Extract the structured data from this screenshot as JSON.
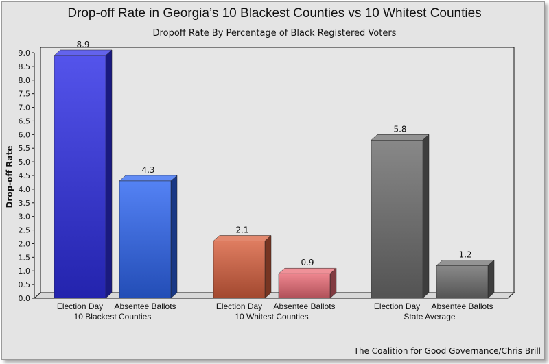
{
  "credit": "The Coalition for Good Governance/Chris Brill",
  "chart_data": {
    "type": "bar",
    "title": "Drop-off Rate in Georgia’s 10 Blackest Counties vs 10 Whitest Counties",
    "subtitle": "Dropoff Rate By Percentage of Black Registered Voters",
    "xlabel": "",
    "ylabel": "Drop-off Rate",
    "ylim": [
      0,
      9.0
    ],
    "yticks": [
      "0.0",
      "0.5",
      "1.0",
      "1.5",
      "2.0",
      "2.5",
      "3.0",
      "3.5",
      "4.0",
      "4.5",
      "5.0",
      "5.5",
      "6.0",
      "6.5",
      "7.0",
      "7.5",
      "8.0",
      "8.5",
      "9.0"
    ],
    "grid": false,
    "legend": "none",
    "groups": [
      {
        "label": "10 Blackest Counties",
        "bars": [
          {
            "label": "Election Day",
            "value": 8.9,
            "color": "#2f2fe6"
          },
          {
            "label": "Absentee Ballots",
            "value": 4.3,
            "color": "#2e66f2"
          }
        ]
      },
      {
        "label": "10 Whitest Counties",
        "bars": [
          {
            "label": "Election Day",
            "value": 2.1,
            "color": "#d8603e"
          },
          {
            "label": "Absentee Ballots",
            "value": 0.9,
            "color": "#ea6c76"
          }
        ]
      },
      {
        "label": "State Average",
        "bars": [
          {
            "label": "Election Day",
            "value": 5.8,
            "color": "#6e6e6e"
          },
          {
            "label": "Absentee Ballots",
            "value": 1.2,
            "color": "#707070"
          }
        ]
      }
    ]
  }
}
